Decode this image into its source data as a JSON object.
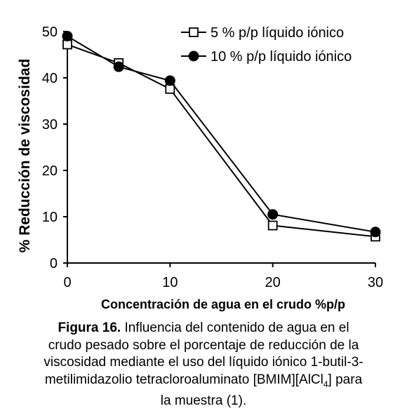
{
  "chart_data": {
    "type": "line",
    "title": "",
    "xlabel": "Concentración de agua en el crudo  %p/p",
    "ylabel": "% Reducción de viscosidad",
    "xlim": [
      0,
      30
    ],
    "ylim": [
      0,
      50
    ],
    "x_ticks": [
      0,
      10,
      20,
      30
    ],
    "y_ticks": [
      0,
      10,
      20,
      30,
      40,
      50
    ],
    "grid": false,
    "legend_position": "top-right",
    "series": [
      {
        "name": "5 % p/p líquido iónico",
        "marker": "open-square",
        "color": "#000000",
        "x": [
          0,
          5,
          10,
          20,
          30
        ],
        "y": [
          47.2,
          43.2,
          37.6,
          8.1,
          5.7
        ]
      },
      {
        "name": "10 % p/p líquido iónico",
        "marker": "filled-circle",
        "color": "#000000",
        "x": [
          0,
          5,
          10,
          20,
          30
        ],
        "y": [
          49.0,
          42.4,
          39.4,
          10.5,
          6.7
        ]
      }
    ]
  },
  "caption": {
    "figure_label": "Figura 16.",
    "line1_rest": " Influencia del contenido de agua en el",
    "line2": "crudo pesado sobre el porcentaje de reducción de la",
    "line3": "viscosidad mediante el uso del líquido iónico 1-butil-3-",
    "line4_pre": "metilimidazolio tetracloroaluminato [BMIM][AlCl",
    "line4_sub": "4",
    "line4_post": "] para",
    "line5": "la muestra (1)."
  }
}
